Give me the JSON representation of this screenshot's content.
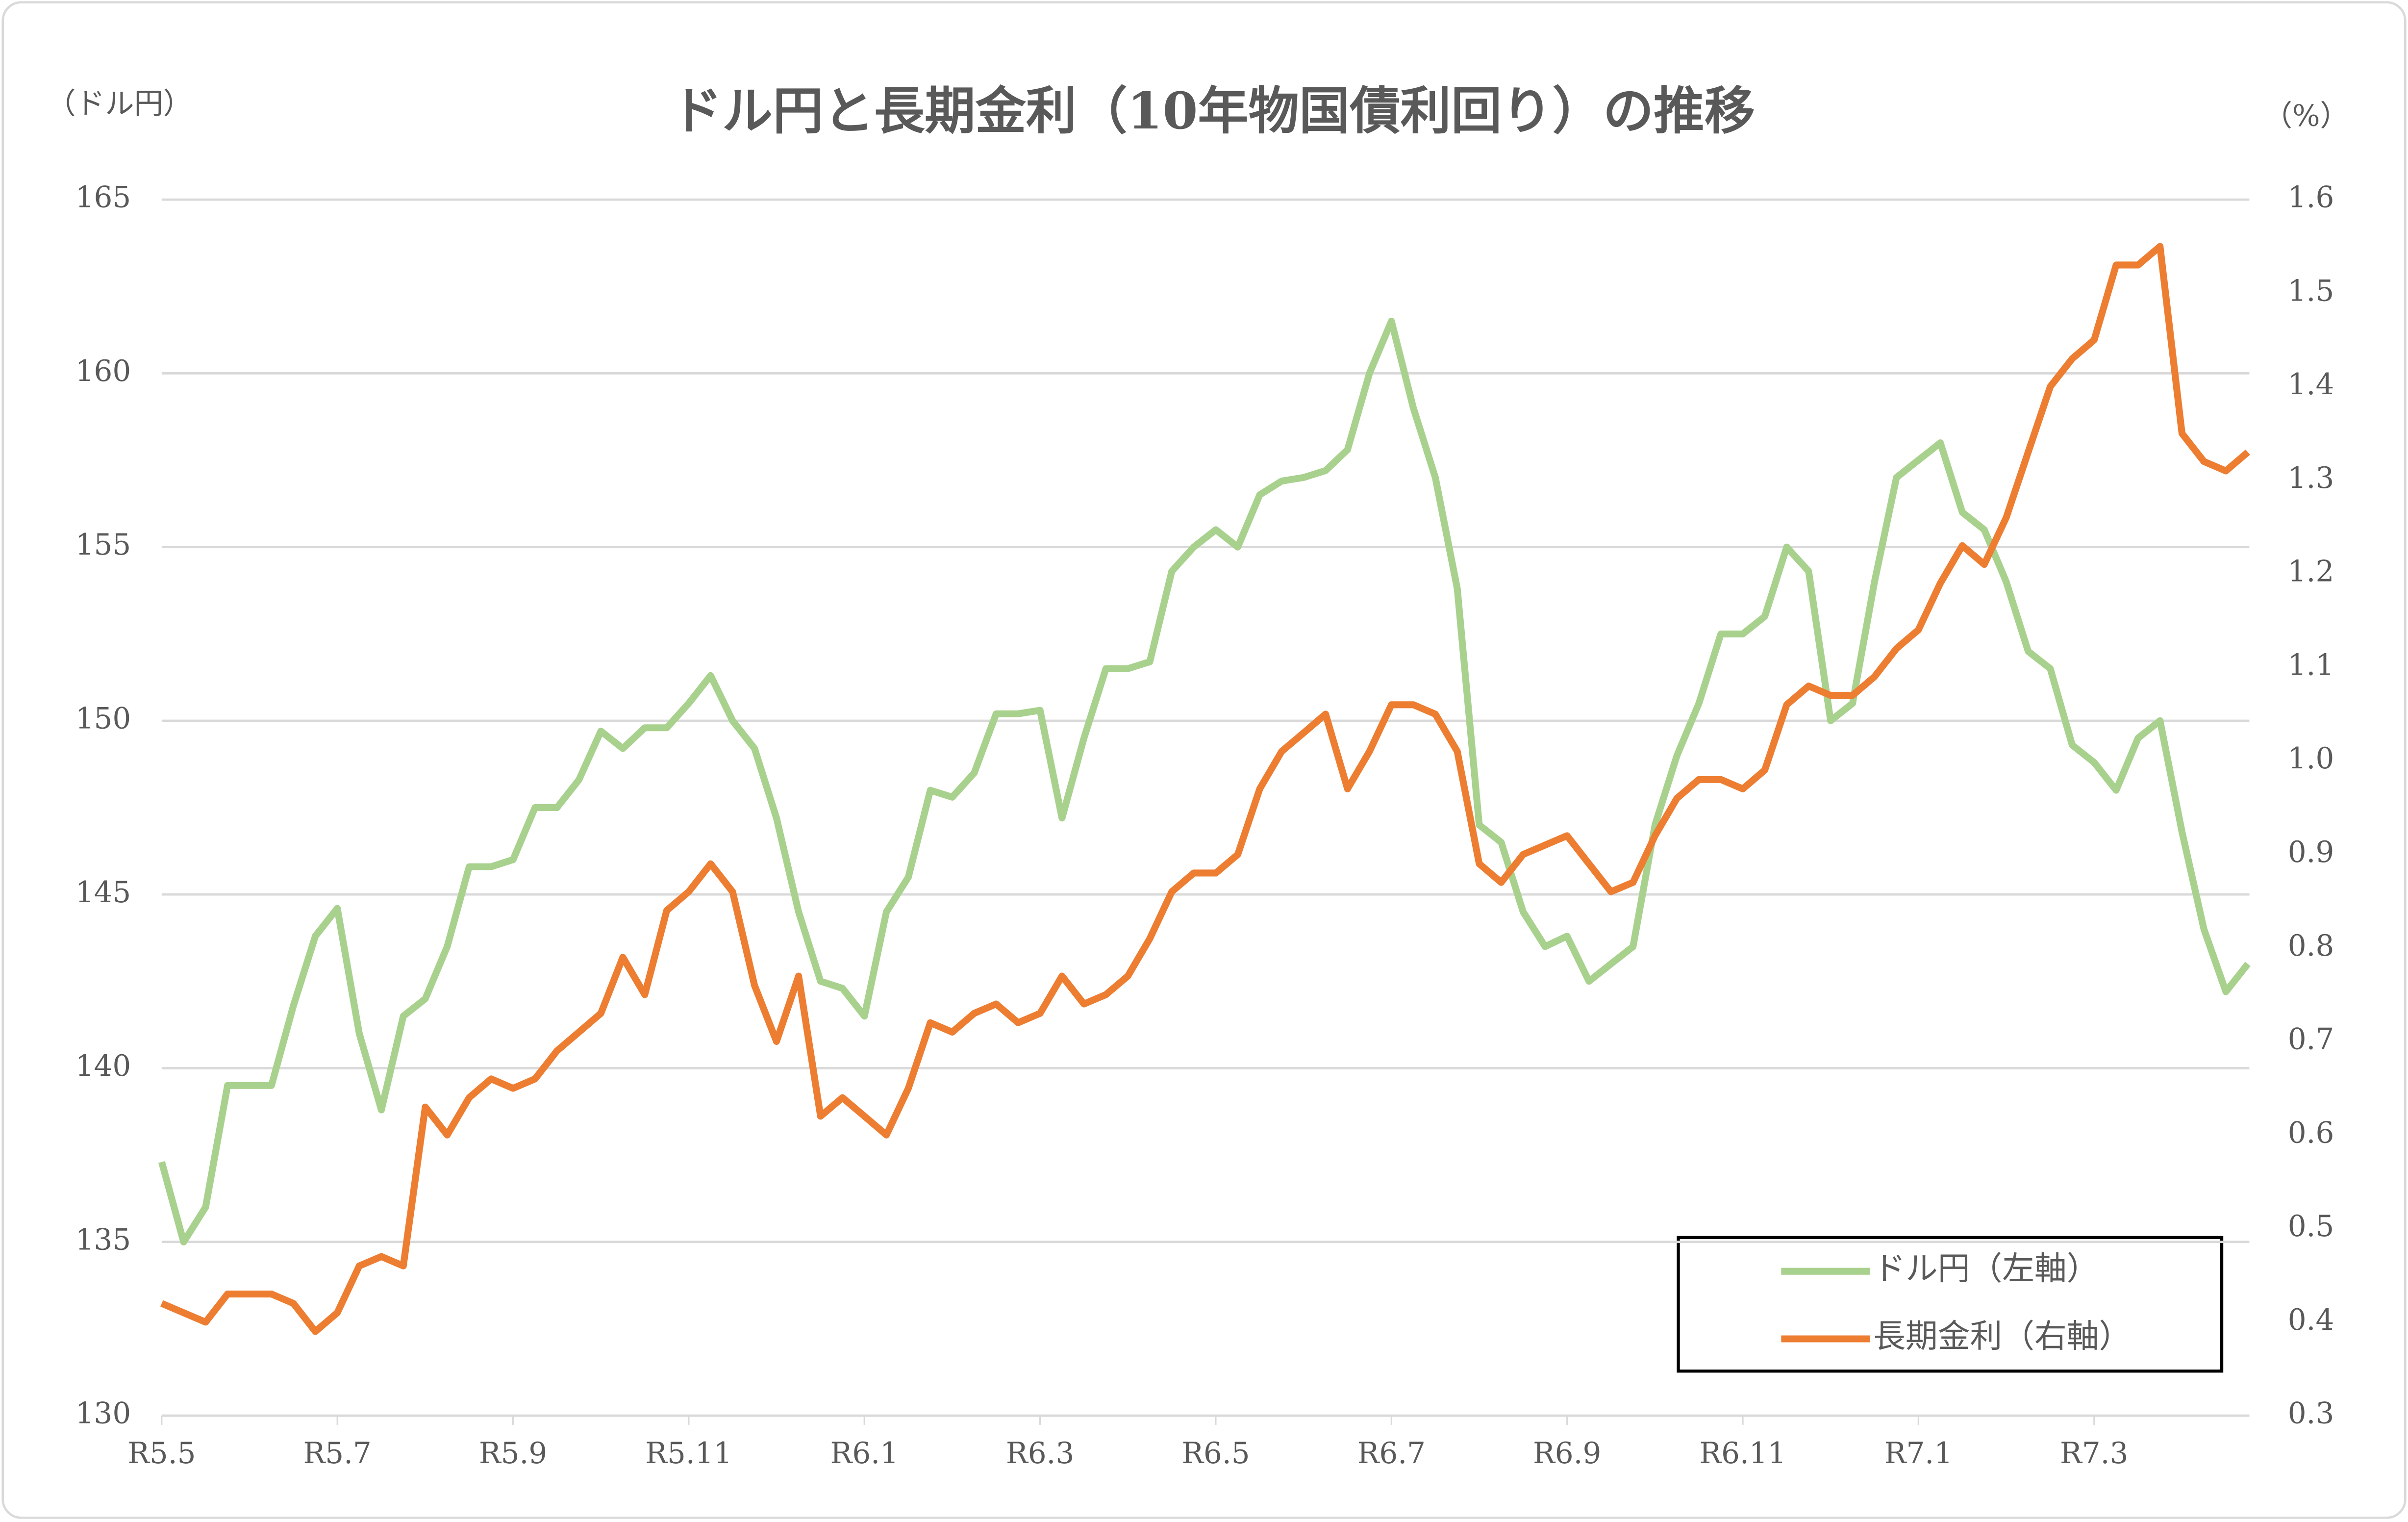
{
  "chart_data": {
    "type": "line",
    "title": "ドル円と長期金利（10年物国債利回り）の推移",
    "y_label": "（ドル円）",
    "y2_label": "（%）",
    "categories": [
      "R5.5",
      null,
      null,
      null,
      null,
      null,
      null,
      null,
      "R5.7",
      null,
      null,
      null,
      null,
      null,
      null,
      null,
      "R5.9",
      null,
      null,
      null,
      null,
      null,
      null,
      null,
      "R5.11",
      null,
      null,
      null,
      null,
      null,
      null,
      null,
      "R6.1",
      null,
      null,
      null,
      null,
      null,
      null,
      null,
      "R6.3",
      null,
      null,
      null,
      null,
      null,
      null,
      null,
      "R6.5",
      null,
      null,
      null,
      null,
      null,
      null,
      null,
      "R6.7",
      null,
      null,
      null,
      null,
      null,
      null,
      null,
      "R6.9",
      null,
      null,
      null,
      null,
      null,
      null,
      null,
      "R6.11",
      null,
      null,
      null,
      null,
      null,
      null,
      null,
      "R7.1",
      null,
      null,
      null,
      null,
      null,
      null,
      null,
      "R7.3",
      null,
      null,
      null,
      null,
      null,
      null,
      null
    ],
    "series": [
      {
        "name": "ドル円（左軸）",
        "color": "#a9d18e",
        "values": [
          137.3,
          135.0,
          136.0,
          139.5,
          139.5,
          139.5,
          141.8,
          143.8,
          144.6,
          141.0,
          138.8,
          141.5,
          142.0,
          143.5,
          145.8,
          145.8,
          146.0,
          147.5,
          147.5,
          148.3,
          149.7,
          149.2,
          149.8,
          149.8,
          150.5,
          151.3,
          150.0,
          149.2,
          147.2,
          144.5,
          142.5,
          142.3,
          141.5,
          144.5,
          145.5,
          148.0,
          147.8,
          148.5,
          150.2,
          150.2,
          150.3,
          147.2,
          149.5,
          151.5,
          151.5,
          151.7,
          154.3,
          155.0,
          155.5,
          155.0,
          156.5,
          156.9,
          157.0,
          157.2,
          157.8,
          160.0,
          161.5,
          159.0,
          157.0,
          153.8,
          147.0,
          146.5,
          144.5,
          143.5,
          143.8,
          142.5,
          143.0,
          143.5,
          147.0,
          149.0,
          150.5,
          152.5,
          152.5,
          153.0,
          155.0,
          154.3,
          150.0,
          150.5,
          154.0,
          157.0,
          157.5,
          158.0,
          156.0,
          155.5,
          154.0,
          152.0,
          151.5,
          149.3,
          148.8,
          148.0,
          149.5,
          150.0,
          146.8,
          144.0,
          142.2,
          143.0
        ]
      },
      {
        "name": "長期金利（右軸）",
        "color": "#ed7d31",
        "axis": "y2",
        "values": [
          0.42,
          0.41,
          0.4,
          0.43,
          0.43,
          0.43,
          0.42,
          0.39,
          0.41,
          0.46,
          0.47,
          0.46,
          0.63,
          0.6,
          0.64,
          0.66,
          0.65,
          0.66,
          0.69,
          0.71,
          0.73,
          0.79,
          0.75,
          0.84,
          0.86,
          0.89,
          0.86,
          0.76,
          0.7,
          0.77,
          0.62,
          0.64,
          0.62,
          0.6,
          0.65,
          0.72,
          0.71,
          0.73,
          0.74,
          0.72,
          0.73,
          0.77,
          0.74,
          0.75,
          0.77,
          0.81,
          0.86,
          0.88,
          0.88,
          0.9,
          0.97,
          1.01,
          1.03,
          1.05,
          0.97,
          1.01,
          1.06,
          1.06,
          1.05,
          1.01,
          0.89,
          0.87,
          0.9,
          0.91,
          0.92,
          0.89,
          0.86,
          0.87,
          0.92,
          0.96,
          0.98,
          0.98,
          0.97,
          0.99,
          1.06,
          1.08,
          1.07,
          1.07,
          1.09,
          1.12,
          1.14,
          1.19,
          1.23,
          1.21,
          1.26,
          1.33,
          1.4,
          1.43,
          1.45,
          1.53,
          1.53,
          1.55,
          1.35,
          1.32,
          1.31,
          1.33
        ]
      }
    ],
    "ylim": [
      130,
      165
    ],
    "yticks": [
      130,
      135,
      140,
      145,
      150,
      155,
      160,
      165
    ],
    "y2lim": [
      0.3,
      1.6
    ],
    "y2ticks": [
      0.3,
      0.4,
      0.5,
      0.6,
      0.7,
      0.8,
      0.9,
      {
        "value": 1,
        "label": "1.0"
      },
      1.1,
      1.2,
      1.3,
      1.4,
      1.5,
      1.6
    ],
    "grid": true,
    "legend": "lower-right"
  }
}
